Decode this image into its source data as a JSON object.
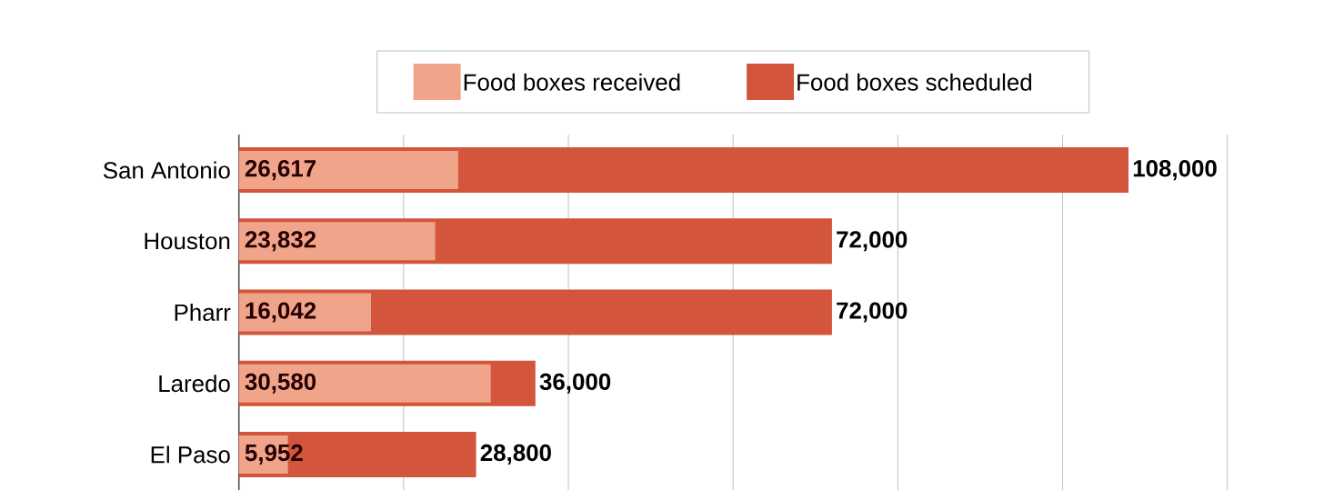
{
  "chart_data": {
    "type": "bar",
    "orientation": "horizontal",
    "categories": [
      "San Antonio",
      "Houston",
      "Pharr",
      "Laredo",
      "El Paso"
    ],
    "series": [
      {
        "name": "Food boxes scheduled",
        "color": "#d2553c",
        "values": [
          108000,
          72000,
          72000,
          36000,
          28800
        ],
        "value_labels": [
          "108,000",
          "72,000",
          "72,000",
          "36,000",
          "28,800"
        ]
      },
      {
        "name": "Food boxes received",
        "color": "#f0a58a",
        "values": [
          26617,
          23832,
          16042,
          30580,
          5952
        ],
        "value_labels": [
          "26,617",
          "23,832",
          "16,042",
          "30,580",
          "5,952"
        ]
      }
    ],
    "xlim": [
      0,
      120000
    ],
    "xticks": [
      {
        "value": 0,
        "label": null
      },
      {
        "value": 20000,
        "label": null
      },
      {
        "value": 40000,
        "label": null
      },
      {
        "value": 60000,
        "label": null
      },
      {
        "value": 80000,
        "label": null
      },
      {
        "value": 100000,
        "label": null
      },
      {
        "value": 120000,
        "label": null
      }
    ],
    "grid": "x",
    "legend": "top",
    "tick_labels": "y"
  }
}
